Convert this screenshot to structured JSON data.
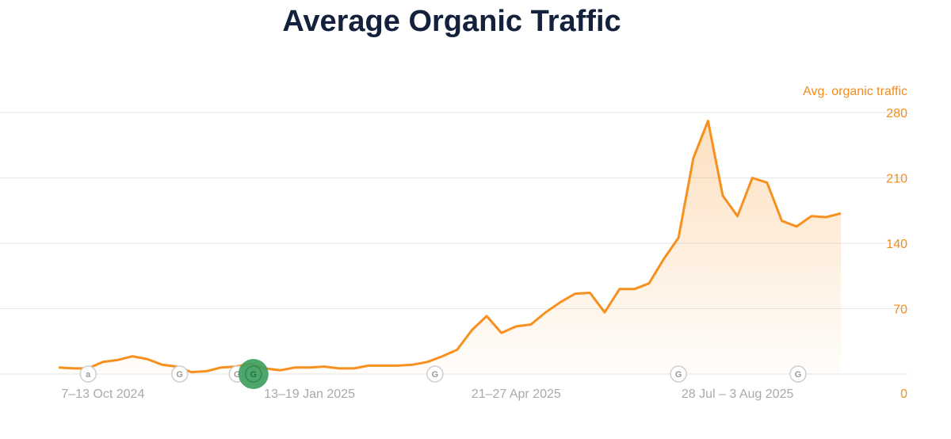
{
  "chart_data": {
    "type": "area",
    "title": "Average Organic Traffic",
    "series_label": "Avg. organic traffic",
    "ylabel": "Avg. organic traffic",
    "xlabel": "",
    "ylim": [
      0,
      280
    ],
    "yticks": [
      0,
      70,
      140,
      210,
      280
    ],
    "grid": true,
    "interval": "weekly",
    "xtick_labels": [
      {
        "label": "7–13 Oct 2024",
        "index": 3
      },
      {
        "label": "13–19 Jan 2025",
        "index": 17
      },
      {
        "label": "21–27 Apr 2025",
        "index": 31
      },
      {
        "label": "28 Jul – 3 Aug 2025",
        "index": 46
      }
    ],
    "values": [
      7,
      6,
      6,
      13,
      15,
      19,
      16,
      10,
      8,
      2,
      3,
      7,
      8,
      11,
      6,
      4,
      7,
      7,
      8,
      6,
      6,
      9,
      9,
      9,
      10,
      13,
      19,
      26,
      47,
      62,
      44,
      51,
      53,
      66,
      77,
      86,
      87,
      66,
      91,
      91,
      97,
      123,
      146,
      231,
      271,
      191,
      169,
      210,
      205,
      164,
      158,
      169,
      168,
      172
    ],
    "markers": [
      {
        "letter": "a",
        "index": 2,
        "highlight": false
      },
      {
        "letter": "G",
        "index": 8.2,
        "highlight": false
      },
      {
        "letter": "G",
        "index": 12.1,
        "highlight": false
      },
      {
        "letter": "G",
        "index": 13.2,
        "highlight": true
      },
      {
        "letter": "G",
        "index": 25.5,
        "highlight": false
      },
      {
        "letter": "G",
        "index": 42,
        "highlight": false
      },
      {
        "letter": "G",
        "index": 50.1,
        "highlight": false
      }
    ],
    "colors": {
      "line": "#f7901e",
      "axis_text": "#f28c1b",
      "grid": "#e6e6e6",
      "highlight": "#3a9d5d",
      "title": "#14213d"
    }
  }
}
